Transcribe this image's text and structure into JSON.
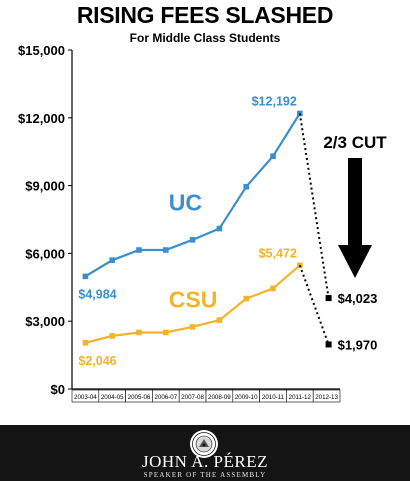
{
  "chart_data": {
    "type": "line",
    "title": "RISING FEES SLASHED",
    "subtitle": "For Middle Class Students",
    "categories": [
      "2003-04",
      "2004-05",
      "2005-06",
      "2006-07",
      "2007-08",
      "2008-09",
      "2009-10",
      "2010-11",
      "2011-12",
      "2012-13"
    ],
    "ylim": [
      0,
      15000
    ],
    "yticks": [
      "$0",
      "$3,000",
      "$6,000",
      "$9,000",
      "$12,000",
      "$15,000"
    ],
    "grid": false,
    "series": [
      {
        "name": "UC",
        "color": "#3a8fd0",
        "values": [
          4984,
          5700,
          6150,
          6150,
          6600,
          7100,
          8950,
          10300,
          12192,
          null
        ],
        "projected_value": 4023,
        "start_label": "$4,984",
        "peak_label": "$12,192",
        "projected_label": "$4,023"
      },
      {
        "name": "CSU",
        "color": "#f5b32a",
        "values": [
          2046,
          2350,
          2500,
          2500,
          2750,
          3050,
          4000,
          4450,
          5472,
          null
        ],
        "projected_value": 1970,
        "start_label": "$2,046",
        "peak_label": "$5,472",
        "projected_label": "$1,970"
      }
    ],
    "annotation": "2/3 CUT"
  },
  "footer": {
    "name": "JOHN A. PÉREZ",
    "subtitle": "SPEAKER OF THE ASSEMBLY"
  }
}
